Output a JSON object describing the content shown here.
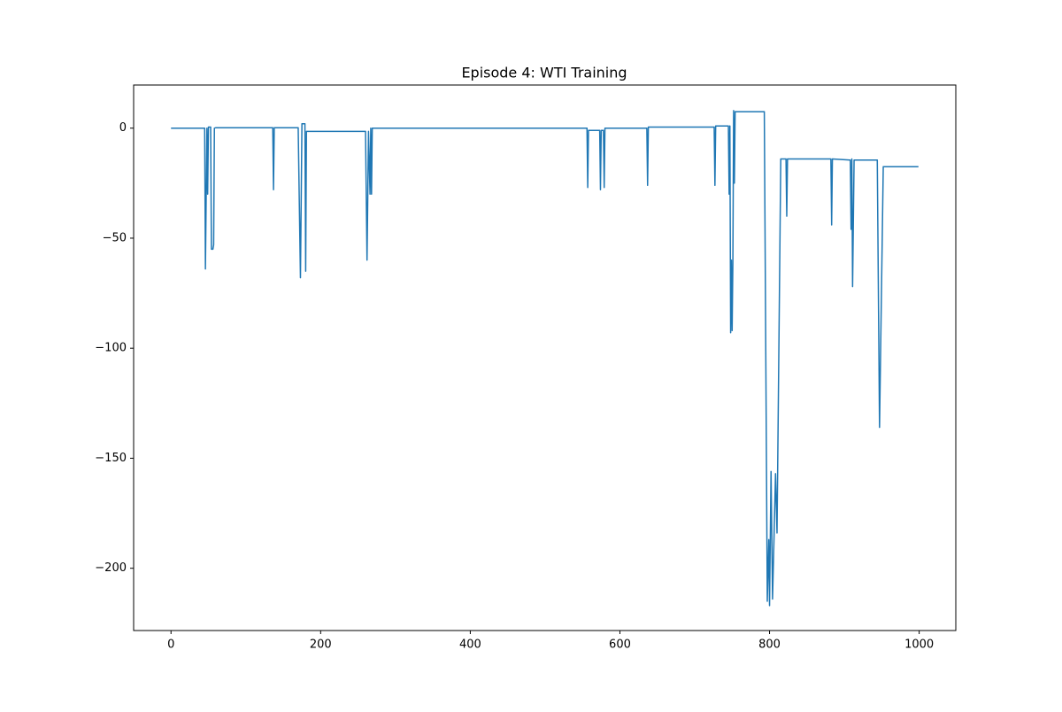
{
  "chart_data": {
    "type": "line",
    "title": "Episode 4: WTI Training",
    "series": [
      {
        "color": "#1f77b4",
        "x": [
          0,
          45,
          46,
          48,
          49,
          50,
          53,
          54,
          56,
          57,
          58,
          60,
          136,
          137,
          138,
          170,
          173,
          175,
          179,
          180,
          181,
          260,
          262,
          264,
          266,
          267,
          268,
          269,
          556,
          557,
          558,
          573,
          574,
          575,
          578,
          579,
          580,
          636,
          637,
          638,
          726,
          727,
          728,
          745,
          746,
          747,
          748,
          749,
          750,
          751,
          752,
          753,
          754,
          755,
          793,
          797,
          799,
          800,
          802,
          804,
          806,
          808,
          810,
          815,
          822,
          823,
          824,
          882,
          883,
          884,
          908,
          909,
          910,
          911,
          912,
          913,
          944,
          947,
          952,
          999
        ],
        "values": [
          0,
          0,
          -64,
          0,
          -30,
          0.5,
          0.5,
          -55,
          -55,
          -53,
          0,
          0.2,
          0.2,
          -28,
          0.2,
          0.2,
          -68,
          2,
          2,
          -65,
          -1.5,
          -1.5,
          -60,
          -1.5,
          -30,
          0,
          -30,
          0,
          0,
          -27,
          -1,
          -1,
          -28,
          -1,
          -1,
          -27,
          0,
          0,
          -26,
          0.5,
          0.5,
          -26,
          1,
          1,
          -30,
          1,
          -93,
          -60,
          -92,
          -60,
          8,
          -25,
          7.5,
          7.5,
          7.5,
          -215,
          -187,
          -217,
          -156,
          -214,
          -186,
          -157,
          -184,
          -14,
          -14,
          -40,
          -14,
          -14,
          -44,
          -14,
          -14.5,
          -46,
          -14,
          -72,
          -43,
          -14.5,
          -14.5,
          -136,
          -17.5,
          -17.5
        ]
      }
    ],
    "xlim": [
      -49.95,
      1048.95
    ],
    "ylim": [
      -228.3,
      19.6
    ],
    "xticks": [
      0,
      200,
      400,
      600,
      800,
      1000
    ],
    "yticks": [
      {
        "value": -200,
        "label": "−200"
      },
      {
        "value": -150,
        "label": "−150"
      },
      {
        "value": -100,
        "label": "−100"
      },
      {
        "value": -50,
        "label": "−50"
      },
      0
    ]
  }
}
